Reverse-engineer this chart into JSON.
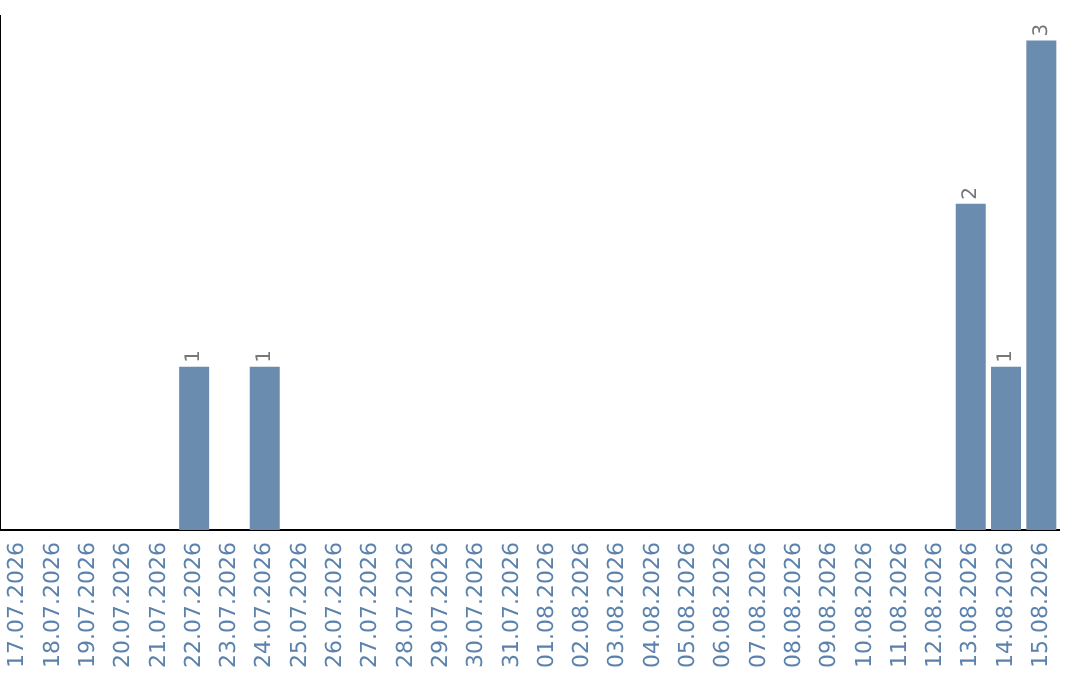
{
  "chart_data": {
    "type": "bar",
    "categories": [
      "17.07.2026",
      "18.07.2026",
      "19.07.2026",
      "20.07.2026",
      "21.07.2026",
      "22.07.2026",
      "23.07.2026",
      "24.07.2026",
      "25.07.2026",
      "26.07.2026",
      "27.07.2026",
      "28.07.2026",
      "29.07.2026",
      "30.07.2026",
      "31.07.2026",
      "01.08.2026",
      "02.08.2026",
      "03.08.2026",
      "04.08.2026",
      "05.08.2026",
      "06.08.2026",
      "07.08.2026",
      "08.08.2026",
      "09.08.2026",
      "10.08.2026",
      "11.08.2026",
      "12.08.2026",
      "13.08.2026",
      "14.08.2026",
      "15.08.2026"
    ],
    "values": [
      0,
      0,
      0,
      0,
      0,
      1,
      0,
      1,
      0,
      0,
      0,
      0,
      0,
      0,
      0,
      0,
      0,
      0,
      0,
      0,
      0,
      0,
      0,
      0,
      0,
      0,
      0,
      2,
      1,
      3
    ],
    "value_labels": [
      null,
      null,
      null,
      null,
      null,
      "1",
      null,
      "1",
      null,
      null,
      null,
      null,
      null,
      null,
      null,
      null,
      null,
      null,
      null,
      null,
      null,
      null,
      null,
      null,
      null,
      null,
      null,
      "2",
      "1",
      "3"
    ],
    "color": "#6a8caf",
    "ylim": [
      0,
      3.15
    ],
    "tick_labels": "x",
    "grid": false,
    "legend": false
  }
}
